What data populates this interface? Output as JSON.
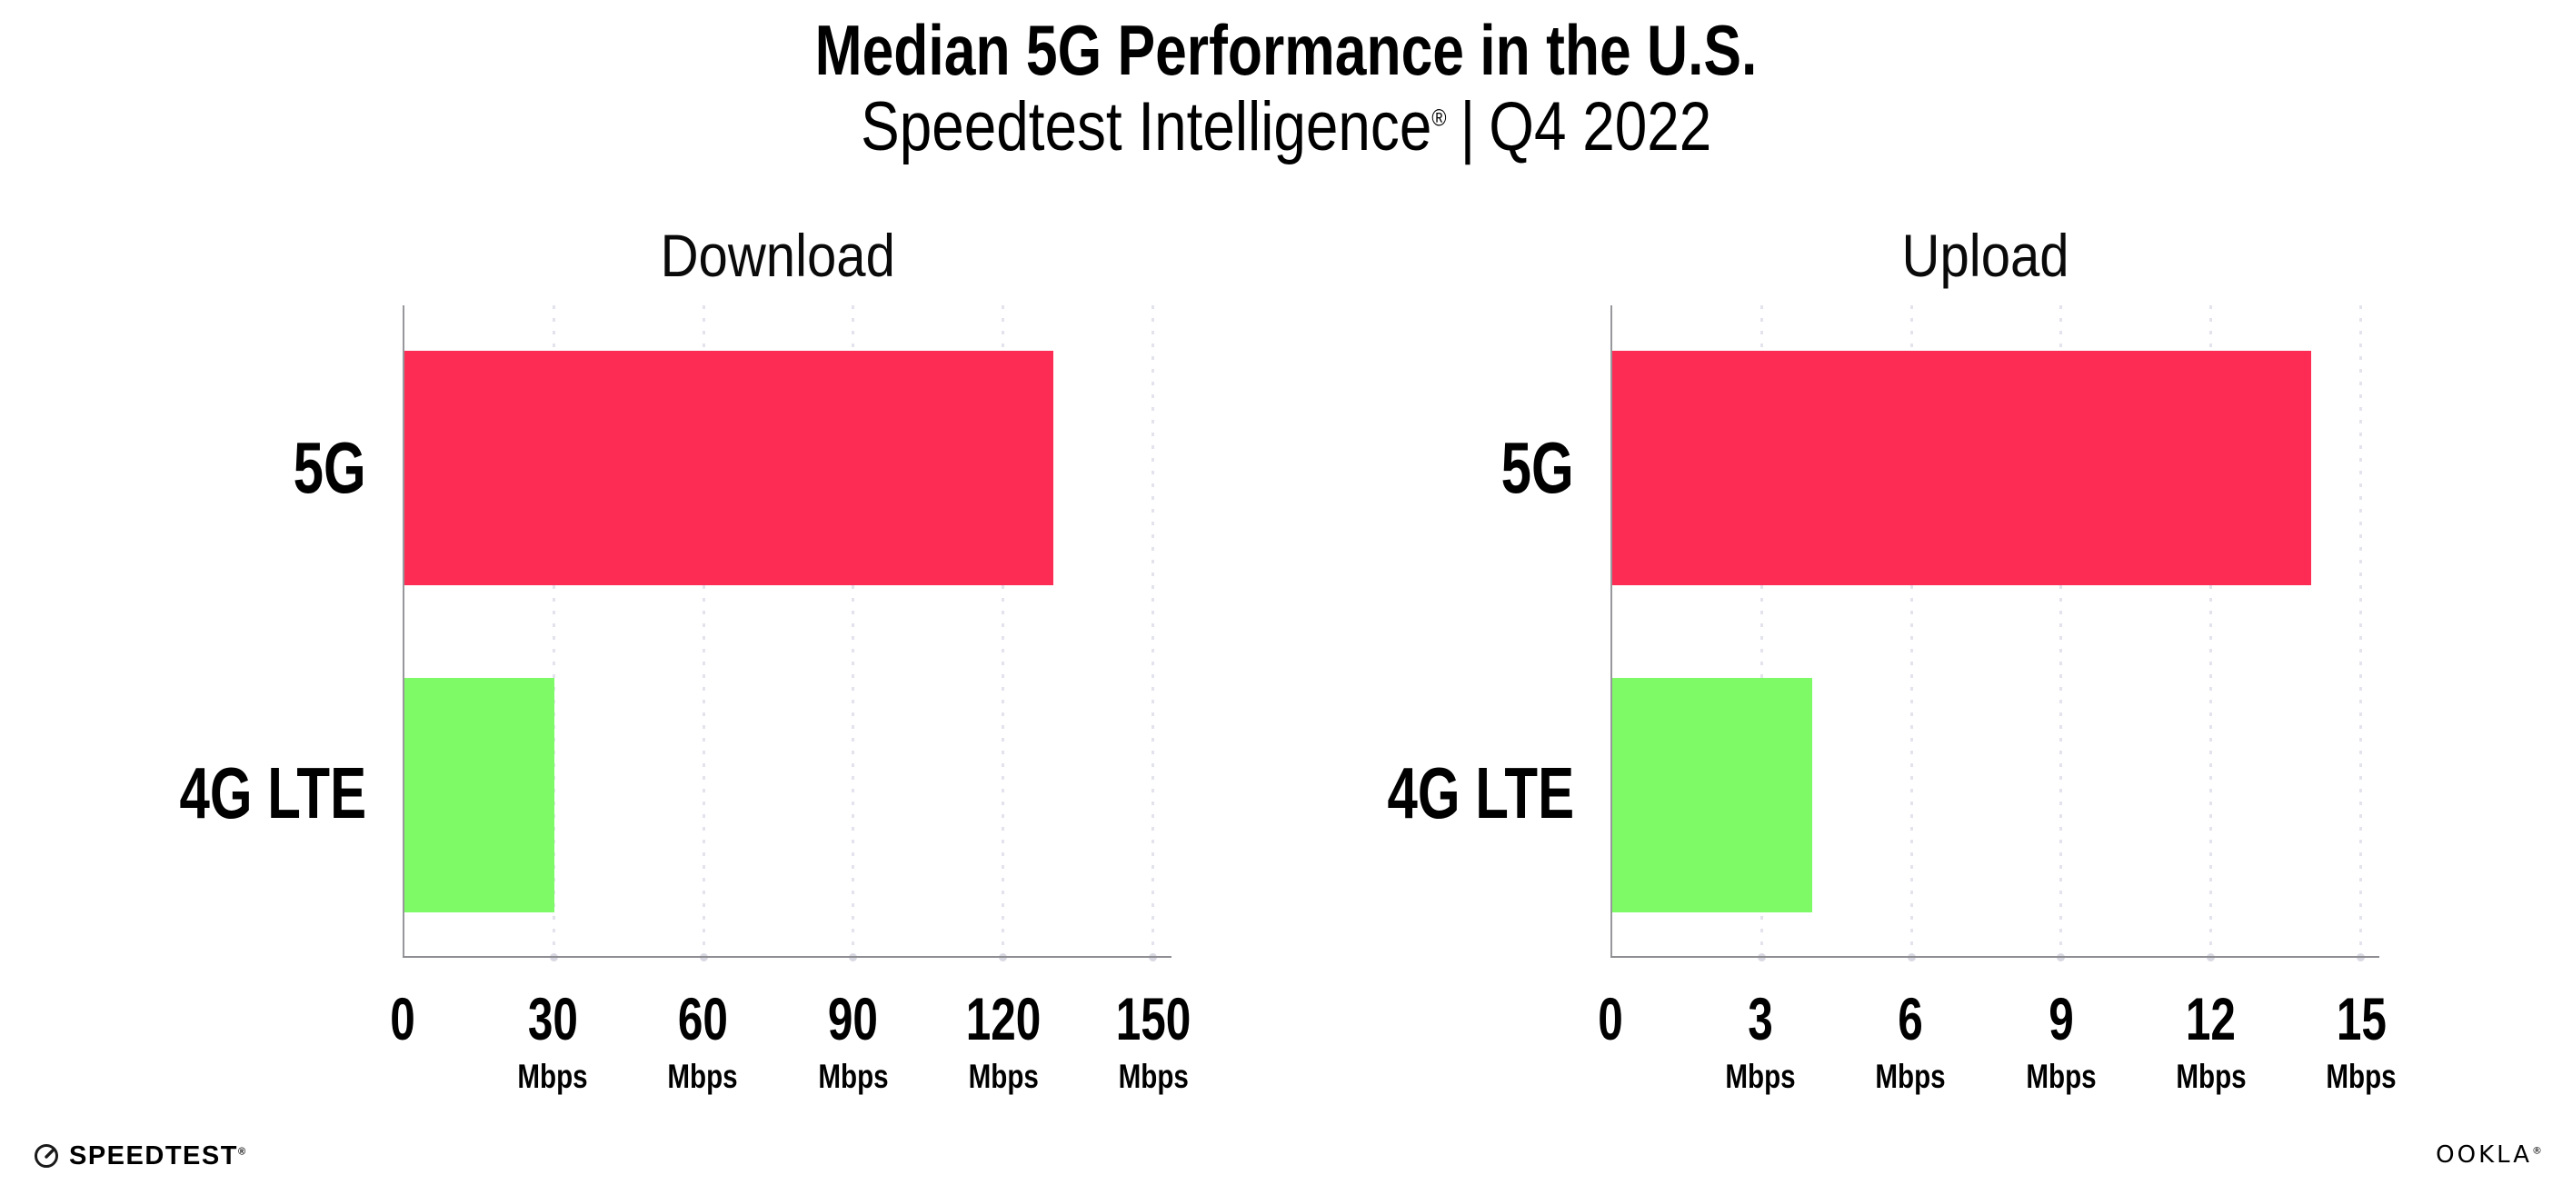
{
  "header": {
    "title": "Median 5G Performance in the U.S.",
    "subtitle_brand": "Speedtest Intelligence",
    "subtitle_reg": "®",
    "subtitle_divider": "|",
    "subtitle_period": "Q4 2022"
  },
  "chart_data": [
    {
      "type": "bar",
      "orientation": "horizontal",
      "title": "Download",
      "categories": [
        "5G",
        "4G LTE"
      ],
      "values": [
        130,
        30
      ],
      "unit": "Mbps",
      "xlim": [
        0,
        150
      ],
      "xticks": [
        0,
        30,
        60,
        90,
        120,
        150
      ],
      "bar_colors": [
        "#fc2c55",
        "#7efa67"
      ],
      "grid": "vertical-dotted",
      "legend": "none"
    },
    {
      "type": "bar",
      "orientation": "horizontal",
      "title": "Upload",
      "categories": [
        "5G",
        "4G LTE"
      ],
      "values": [
        14,
        4
      ],
      "unit": "Mbps",
      "xlim": [
        0,
        15
      ],
      "xticks": [
        0,
        3,
        6,
        9,
        12,
        15
      ],
      "bar_colors": [
        "#fc2c55",
        "#7efa67"
      ],
      "grid": "vertical-dotted",
      "legend": "none"
    }
  ],
  "footer": {
    "speedtest_label": "SPEEDTEST",
    "speedtest_mark": "®",
    "ookla_label": "OOKLA",
    "ookla_mark": "®"
  },
  "colors": {
    "background": "#ffffff",
    "bar_5g": "#fc2c55",
    "bar_4g_lte": "#7efa67",
    "gridline_dots": "#e3e3ed",
    "axis_line": "#97979c",
    "text": "#000000"
  }
}
